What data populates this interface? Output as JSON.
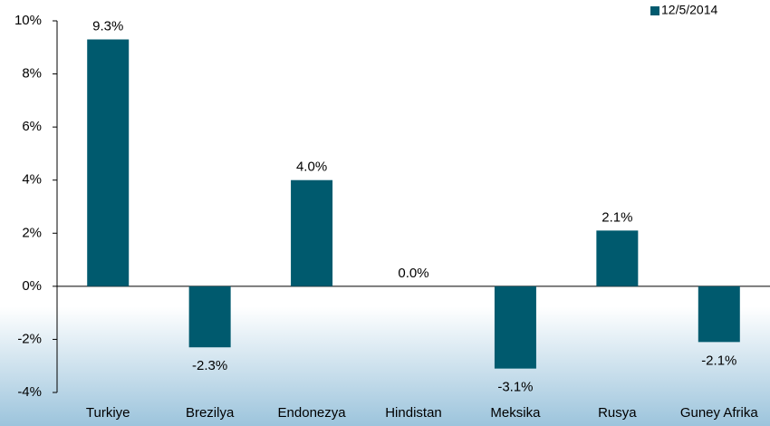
{
  "chart_data": {
    "type": "bar",
    "categories": [
      "Turkiye",
      "Brezilya",
      "Endonezya",
      "Hindistan",
      "Meksika",
      "Rusya",
      "Guney Afrika"
    ],
    "series": [
      {
        "name": "12/5/2014",
        "color": "#005a6e",
        "values": [
          9.3,
          -2.3,
          4.0,
          0.0,
          -3.1,
          2.1,
          -2.1
        ],
        "value_labels": [
          "9.3%",
          "-2.3%",
          "4.0%",
          "0.0%",
          "-3.1%",
          "2.1%",
          "-2.1%"
        ]
      }
    ],
    "ylim": [
      -4,
      10
    ],
    "yticks": [
      {
        "value": -4,
        "label": "-4%"
      },
      {
        "value": -2,
        "label": "-2%"
      },
      {
        "value": 0,
        "label": "0%"
      },
      {
        "value": 2,
        "label": "2%"
      },
      {
        "value": 4,
        "label": "4%"
      },
      {
        "value": 6,
        "label": "6%"
      },
      {
        "value": 8,
        "label": "8%"
      },
      {
        "value": 10,
        "label": "10%"
      }
    ],
    "legend": "top-right"
  }
}
